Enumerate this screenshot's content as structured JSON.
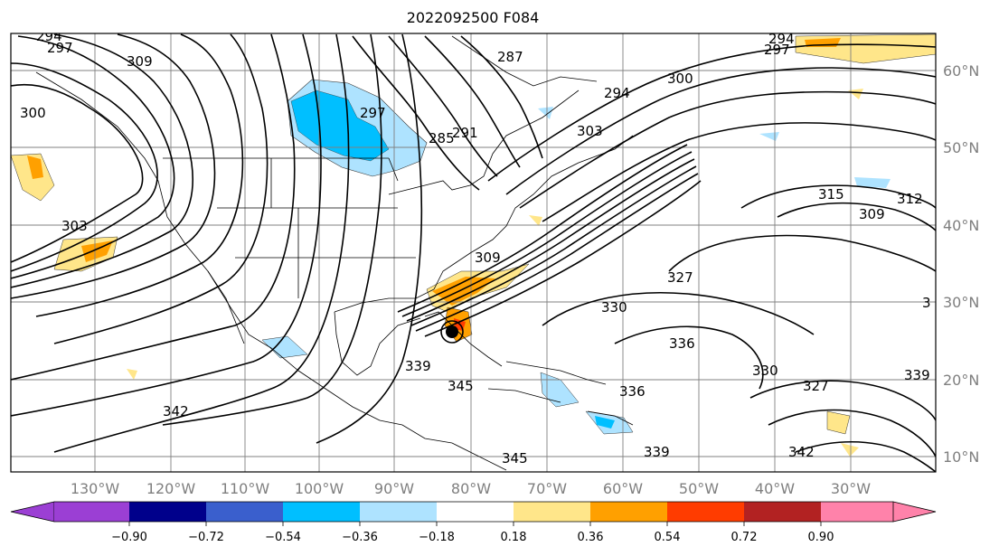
{
  "title": "2022092500 F084",
  "map": {
    "lon_labels": [
      "130°W",
      "120°W",
      "110°W",
      "100°W",
      "90°W",
      "80°W",
      "70°W",
      "60°W",
      "50°W",
      "40°W",
      "30°W"
    ],
    "lat_labels": [
      "60°N",
      "50°N",
      "40°N",
      "30°N",
      "20°N",
      "10°N"
    ],
    "contour_labels": [
      "297",
      "309",
      "300",
      "303",
      "294",
      "297",
      "285",
      "291",
      "287",
      "294",
      "300",
      "303",
      "315",
      "312",
      "309",
      "327",
      "330",
      "336",
      "339",
      "345",
      "342",
      "330",
      "327",
      "339",
      "336",
      "339",
      "345",
      "342",
      "297",
      "294",
      "309",
      "3"
    ]
  },
  "colorbar": {
    "ticks": [
      "−0.90",
      "−0.72",
      "−0.54",
      "−0.36",
      "−0.18",
      "0.18",
      "0.36",
      "0.54",
      "0.72",
      "0.90"
    ],
    "colors": [
      "#9b3fd4",
      "#00008b",
      "#3a5fcd",
      "#00bfff",
      "#aee3ff",
      "#ffffff",
      "#ffe68a",
      "#ffa000",
      "#ff3c00",
      "#b22222",
      "#ff82aa"
    ]
  }
}
